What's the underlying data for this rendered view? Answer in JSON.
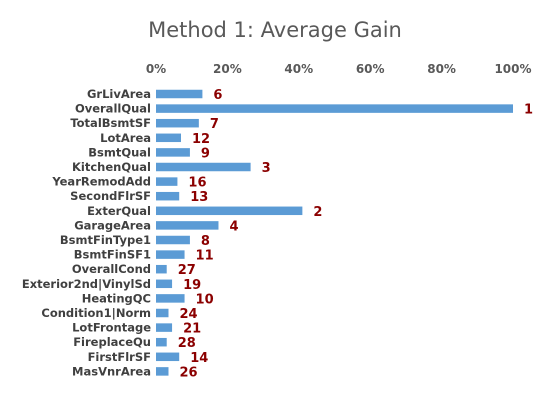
{
  "chart_data": {
    "type": "bar",
    "orientation": "horizontal",
    "title": "Method 1: Average Gain",
    "xlabel": "",
    "ylabel": "",
    "xlim": [
      0,
      100
    ],
    "x_ticks": [
      "0%",
      "20%",
      "40%",
      "60%",
      "80%",
      "100%"
    ],
    "x_tick_values": [
      0,
      20,
      40,
      60,
      80,
      100
    ],
    "x_axis_position": "top",
    "grid": false,
    "legend": "none",
    "categories": [
      "GrLivArea",
      "OverallQual",
      "TotalBsmtSF",
      "LotArea",
      "BsmtQual",
      "KitchenQual",
      "YearRemodAdd",
      "SecondFlrSF",
      "ExterQual",
      "GarageArea",
      "BsmtFinType1",
      "BsmtFinSF1",
      "OverallCond",
      "Exterior2nd|VinylSd",
      "HeatingQC",
      "Condition1|Norm",
      "LotFrontage",
      "FireplaceQu",
      "FirstFlrSF",
      "MasVnrArea"
    ],
    "series": [
      {
        "values": [
          13,
          100,
          12,
          7,
          9.5,
          26.5,
          6,
          6.5,
          41,
          17.5,
          9.5,
          8,
          3,
          4.5,
          8,
          3.5,
          4.5,
          3,
          6.5,
          3.5
        ],
        "color": "#5b9bd5"
      }
    ],
    "data_labels": [
      "6",
      "1",
      "7",
      "12",
      "9",
      "3",
      "16",
      "13",
      "2",
      "4",
      "8",
      "11",
      "27",
      "19",
      "10",
      "24",
      "21",
      "28",
      "14",
      "26"
    ],
    "data_label_color": "#8b0000"
  }
}
